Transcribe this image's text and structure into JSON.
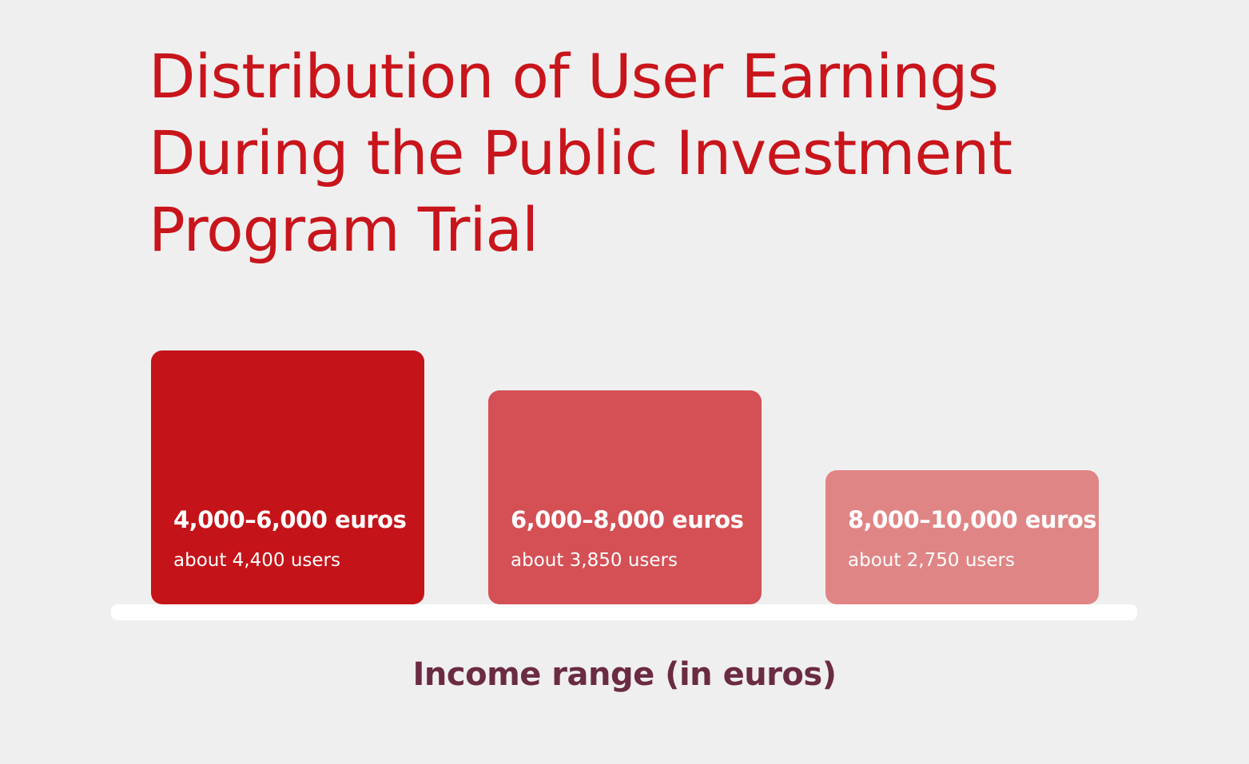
{
  "chart_data": {
    "type": "bar",
    "title": "Distribution of User Earnings During the Public Investment Program Trial",
    "xlabel": "Income range (in euros)",
    "ylabel": "",
    "categories": [
      "4,000–6,000 euros",
      "6,000–8,000 euros",
      "8,000–10,000 euros"
    ],
    "value_labels": [
      "about 4,400 users",
      "about 3,850 users",
      "about 2,750 users"
    ],
    "values": [
      4400,
      3850,
      2750
    ],
    "colors": [
      "#c41419",
      "#d45055",
      "#e08585"
    ],
    "grid": false,
    "legend": "none"
  }
}
